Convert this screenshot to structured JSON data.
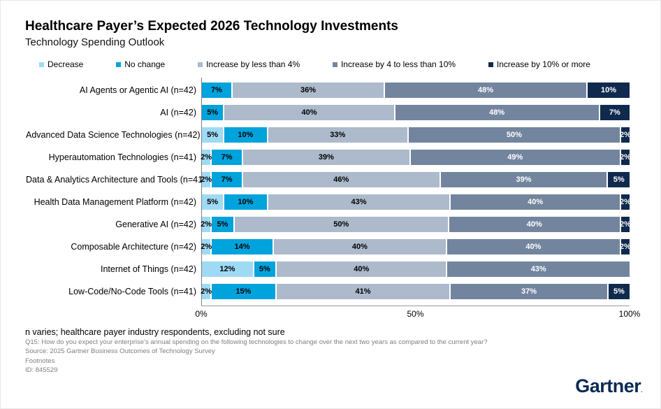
{
  "title": "Healthcare Payer’s Expected 2026 Technology Investments",
  "subtitle": "Technology Spending Outlook",
  "chart_data": {
    "type": "bar",
    "stacked": true,
    "orientation": "horizontal",
    "categories": [
      "AI Agents or Agentic AI (n=42)",
      "AI (n=42)",
      "Advanced Data Science Technologies (n=42)",
      "Hyperautomation Technologies (n=41)",
      "Data & Analytics Architecture and Tools (n=41)",
      "Health Data Management Platform (n=42)",
      "Generative AI (n=42)",
      "Composable Architecture (n=42)",
      "Internet of Things (n=42)",
      "Low-Code/No-Code Tools (n=41)"
    ],
    "series": [
      {
        "name": "Decrease",
        "color": "#9FDAF5",
        "label_color": "#000000",
        "values": [
          0,
          0,
          5,
          2,
          2,
          5,
          2,
          2,
          12,
          2
        ]
      },
      {
        "name": "No change",
        "color": "#00A3DC",
        "label_color": "#000000",
        "values": [
          7,
          5,
          10,
          7,
          7,
          10,
          5,
          14,
          5,
          15
        ]
      },
      {
        "name": "Increase by less than 4%",
        "color": "#ACBACB",
        "label_color": "#000000",
        "values": [
          36,
          40,
          33,
          39,
          46,
          43,
          50,
          40,
          40,
          41
        ]
      },
      {
        "name": "Increase by 4 to less than 10%",
        "color": "#73859E",
        "label_color": "#ffffff",
        "values": [
          48,
          48,
          50,
          49,
          39,
          40,
          40,
          40,
          43,
          37
        ]
      },
      {
        "name": "Increase by 10% or more",
        "color": "#102A4E",
        "label_color": "#ffffff",
        "values": [
          10,
          7,
          2,
          2,
          5,
          2,
          2,
          2,
          0,
          5
        ]
      }
    ],
    "value_suffix": "%",
    "x_axis": {
      "ticks": [
        "0%",
        "50%",
        "100%"
      ],
      "positions": [
        0,
        50,
        100
      ],
      "range": [
        0,
        100
      ]
    },
    "legend_position": "top",
    "grid": false
  },
  "footer": {
    "note": "n varies; healthcare payer industry respondents, excluding not sure",
    "question": "Q15: How do you expect your enterprise’s annual spending on the following technologies to change over the next two years as compared to the current year?",
    "source": "Source: 2025 Gartner Business Outcomes of Technology Survey",
    "footnotes": "Footnotes",
    "id": "ID: 845529"
  },
  "logo": {
    "text": "Gartner",
    "reg_mark": "."
  }
}
